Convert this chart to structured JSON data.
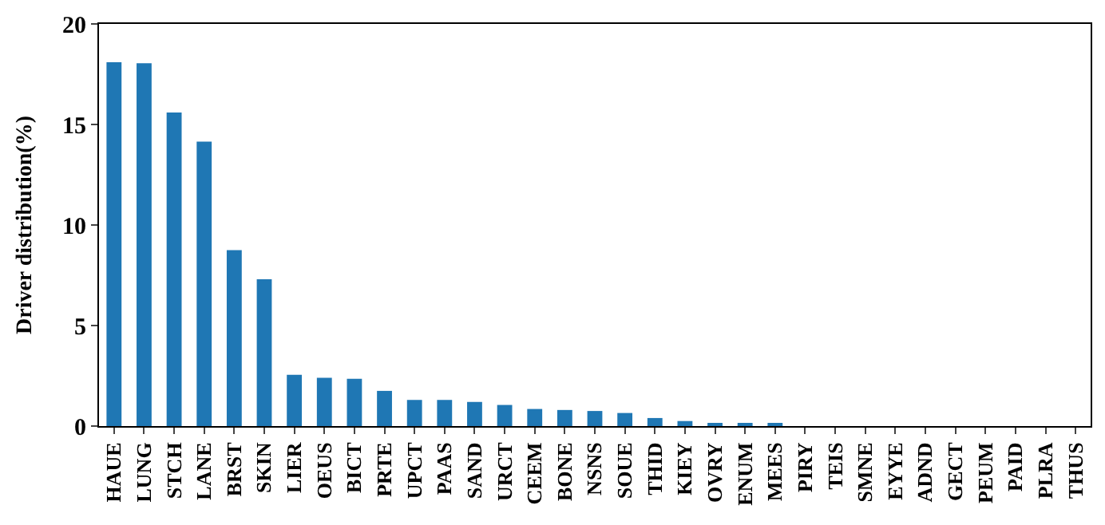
{
  "chart_data": {
    "type": "bar",
    "ylabel": "Driver distribution(%)",
    "categories": [
      "HAUE",
      "LUNG",
      "STCH",
      "LANE",
      "BRST",
      "SKIN",
      "LIER",
      "OEUS",
      "BICT",
      "PRTE",
      "UPCT",
      "PAAS",
      "SAND",
      "URCT",
      "CEEM",
      "BONE",
      "NSNS",
      "SOUE",
      "THID",
      "KIEY",
      "OVRY",
      "ENUM",
      "MEES",
      "PIRY",
      "TEIS",
      "SMNE",
      "EYYE",
      "ADND",
      "GECT",
      "PEUM",
      "PAID",
      "PLRA",
      "THUS"
    ],
    "values": [
      18.1,
      18.05,
      15.6,
      14.15,
      8.75,
      7.3,
      2.55,
      2.4,
      2.35,
      1.75,
      1.3,
      1.3,
      1.2,
      1.05,
      0.85,
      0.8,
      0.75,
      0.65,
      0.4,
      0.25,
      0.15,
      0.15,
      0.1,
      0,
      0,
      0,
      0,
      0,
      0,
      0,
      0,
      0,
      0
    ],
    "color": "#1f77b4",
    "ylim": [
      0,
      20
    ],
    "yticks": [
      0,
      5,
      10,
      15,
      20
    ]
  }
}
